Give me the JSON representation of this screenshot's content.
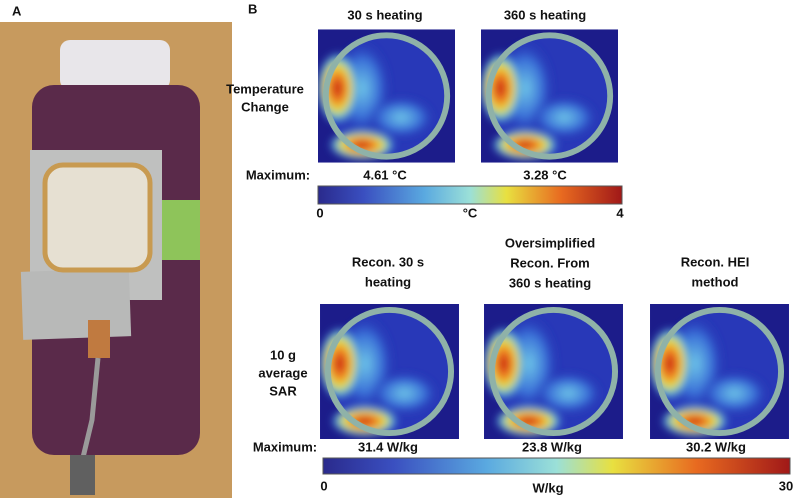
{
  "panel_a": {
    "label": "A"
  },
  "panel_b": {
    "label": "B",
    "top": {
      "columns": [
        "30 s heating",
        "360 s heating"
      ],
      "row_label": [
        "Temperature",
        "Change"
      ],
      "maximum_label": "Maximum:",
      "maxima": [
        "4.61 °C",
        "3.28 °C"
      ],
      "colorbar": {
        "min": "0",
        "unit": "°C",
        "max": "4"
      }
    },
    "bottom": {
      "columns": [
        [
          "Recon. 30 s",
          "heating"
        ],
        [
          "Oversimplified",
          "Recon. From",
          "360 s heating"
        ],
        [
          "Recon. HEI",
          "method"
        ]
      ],
      "row_label": [
        "10 g",
        "average",
        "SAR"
      ],
      "maximum_label": "Maximum:",
      "maxima": [
        "31.4 W/kg",
        "23.8 W/kg",
        "30.2 W/kg"
      ],
      "colorbar": {
        "min": "0",
        "unit": "W/kg",
        "max": "30"
      }
    }
  }
}
